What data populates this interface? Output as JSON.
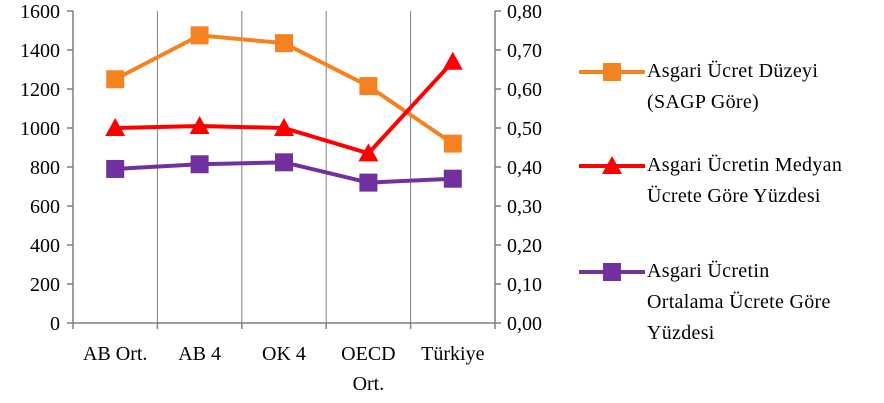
{
  "chart_data": {
    "type": "line",
    "categories": [
      "AB Ort.",
      "AB 4",
      "OK 4",
      "OECD\nOrt.",
      "Türkiye"
    ],
    "y_left": {
      "min": 0,
      "max": 1600,
      "step": 200,
      "tick_labels": [
        "0",
        "200",
        "400",
        "600",
        "800",
        "1000",
        "1200",
        "1400",
        "1600"
      ]
    },
    "y_right": {
      "min": 0,
      "max": 0.8,
      "step": 0.1,
      "tick_labels": [
        "0,00",
        "0,10",
        "0,20",
        "0,30",
        "0,40",
        "0,50",
        "0,60",
        "0,70",
        "0,80"
      ]
    },
    "grid": "vertical",
    "legend_position": "right",
    "series": [
      {
        "name": "Asgari Ücret Düzeyi\n(SAGP Göre)",
        "axis": "left",
        "marker": "square",
        "color": "#F58220",
        "values": [
          1250,
          1475,
          1435,
          1215,
          920
        ]
      },
      {
        "name": "Asgari Ücretin Medyan\nÜcrete Göre Yüzdesi",
        "axis": "right",
        "marker": "triangle",
        "color": "#FF0000",
        "values": [
          0.5,
          0.505,
          0.5,
          0.435,
          0.67
        ]
      },
      {
        "name": "Asgari Ücretin\nOrtalama Ücrete Göre\nYüzdesi",
        "axis": "right",
        "marker": "square",
        "color": "#7030A0",
        "values": [
          0.395,
          0.407,
          0.412,
          0.36,
          0.37
        ]
      }
    ]
  }
}
